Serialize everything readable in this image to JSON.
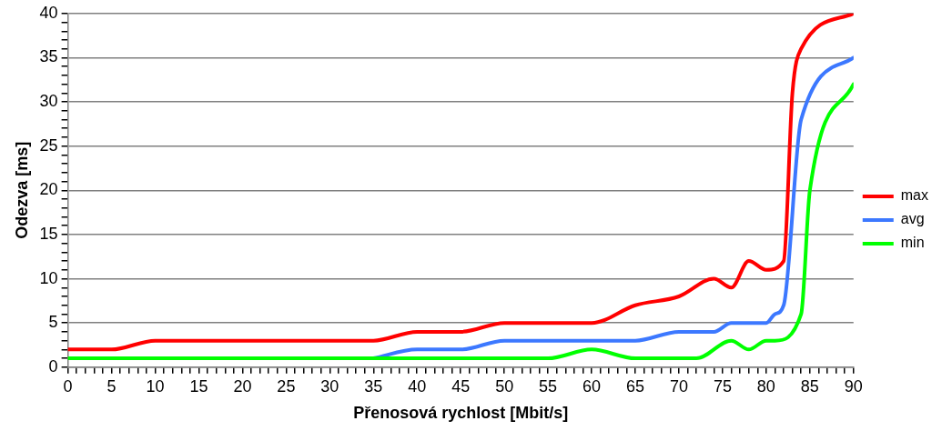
{
  "chart_data": {
    "type": "line",
    "xlabel": "Přenosová rychlost [Mbit/s]",
    "ylabel": "Odezva [ms]",
    "xlim": [
      0,
      90
    ],
    "ylim": [
      0,
      40
    ],
    "xticks": [
      0,
      {
        "value": 1,
        "label": null
      },
      {
        "value": 2,
        "label": null
      },
      {
        "value": 3,
        "label": null
      },
      {
        "value": 4,
        "label": null
      },
      5,
      {
        "value": 6,
        "label": null
      },
      {
        "value": 7,
        "label": null
      },
      {
        "value": 8,
        "label": null
      },
      {
        "value": 9,
        "label": null
      },
      10,
      {
        "value": 11,
        "label": null
      },
      {
        "value": 12,
        "label": null
      },
      {
        "value": 13,
        "label": null
      },
      {
        "value": 14,
        "label": null
      },
      15,
      {
        "value": 16,
        "label": null
      },
      {
        "value": 17,
        "label": null
      },
      {
        "value": 18,
        "label": null
      },
      {
        "value": 19,
        "label": null
      },
      20,
      {
        "value": 21,
        "label": null
      },
      {
        "value": 22,
        "label": null
      },
      {
        "value": 23,
        "label": null
      },
      {
        "value": 24,
        "label": null
      },
      25,
      {
        "value": 26,
        "label": null
      },
      {
        "value": 27,
        "label": null
      },
      {
        "value": 28,
        "label": null
      },
      {
        "value": 29,
        "label": null
      },
      30,
      {
        "value": 31,
        "label": null
      },
      {
        "value": 32,
        "label": null
      },
      {
        "value": 33,
        "label": null
      },
      {
        "value": 34,
        "label": null
      },
      35,
      {
        "value": 36,
        "label": null
      },
      {
        "value": 37,
        "label": null
      },
      {
        "value": 38,
        "label": null
      },
      {
        "value": 39,
        "label": null
      },
      40,
      {
        "value": 41,
        "label": null
      },
      {
        "value": 42,
        "label": null
      },
      {
        "value": 43,
        "label": null
      },
      {
        "value": 44,
        "label": null
      },
      45,
      {
        "value": 46,
        "label": null
      },
      {
        "value": 47,
        "label": null
      },
      {
        "value": 48,
        "label": null
      },
      {
        "value": 49,
        "label": null
      },
      50,
      {
        "value": 51,
        "label": null
      },
      {
        "value": 52,
        "label": null
      },
      {
        "value": 53,
        "label": null
      },
      {
        "value": 54,
        "label": null
      },
      55,
      {
        "value": 56,
        "label": null
      },
      {
        "value": 57,
        "label": null
      },
      {
        "value": 58,
        "label": null
      },
      {
        "value": 59,
        "label": null
      },
      60,
      {
        "value": 61,
        "label": null
      },
      {
        "value": 62,
        "label": null
      },
      {
        "value": 63,
        "label": null
      },
      {
        "value": 64,
        "label": null
      },
      65,
      {
        "value": 66,
        "label": null
      },
      {
        "value": 67,
        "label": null
      },
      {
        "value": 68,
        "label": null
      },
      {
        "value": 69,
        "label": null
      },
      70,
      {
        "value": 71,
        "label": null
      },
      {
        "value": 72,
        "label": null
      },
      {
        "value": 73,
        "label": null
      },
      {
        "value": 74,
        "label": null
      },
      75,
      {
        "value": 76,
        "label": null
      },
      {
        "value": 77,
        "label": null
      },
      {
        "value": 78,
        "label": null
      },
      {
        "value": 79,
        "label": null
      },
      80,
      {
        "value": 81,
        "label": null
      },
      {
        "value": 82,
        "label": null
      },
      {
        "value": 83,
        "label": null
      },
      {
        "value": 84,
        "label": null
      },
      85,
      {
        "value": 86,
        "label": null
      },
      {
        "value": 87,
        "label": null
      },
      {
        "value": 88,
        "label": null
      },
      {
        "value": 89,
        "label": null
      },
      90
    ],
    "yticks": [
      0,
      {
        "value": 1,
        "label": null
      },
      {
        "value": 2,
        "label": null
      },
      {
        "value": 3,
        "label": null
      },
      {
        "value": 4,
        "label": null
      },
      5,
      {
        "value": 6,
        "label": null
      },
      {
        "value": 7,
        "label": null
      },
      {
        "value": 8,
        "label": null
      },
      {
        "value": 9,
        "label": null
      },
      10,
      {
        "value": 11,
        "label": null
      },
      {
        "value": 12,
        "label": null
      },
      {
        "value": 13,
        "label": null
      },
      {
        "value": 14,
        "label": null
      },
      15,
      {
        "value": 16,
        "label": null
      },
      {
        "value": 17,
        "label": null
      },
      {
        "value": 18,
        "label": null
      },
      {
        "value": 19,
        "label": null
      },
      20,
      {
        "value": 21,
        "label": null
      },
      {
        "value": 22,
        "label": null
      },
      {
        "value": 23,
        "label": null
      },
      {
        "value": 24,
        "label": null
      },
      25,
      {
        "value": 26,
        "label": null
      },
      {
        "value": 27,
        "label": null
      },
      {
        "value": 28,
        "label": null
      },
      {
        "value": 29,
        "label": null
      },
      30,
      {
        "value": 31,
        "label": null
      },
      {
        "value": 32,
        "label": null
      },
      {
        "value": 33,
        "label": null
      },
      {
        "value": 34,
        "label": null
      },
      35,
      {
        "value": 36,
        "label": null
      },
      {
        "value": 37,
        "label": null
      },
      {
        "value": 38,
        "label": null
      },
      {
        "value": 39,
        "label": null
      },
      40
    ],
    "grid": "y",
    "legend": "right",
    "marker": "none",
    "line_style": "solid",
    "series": [
      {
        "name": "max",
        "color": "#ff0000",
        "x": [
          0,
          5,
          10,
          15,
          20,
          25,
          30,
          35,
          40,
          45,
          50,
          55,
          60,
          65,
          70,
          74,
          76,
          78,
          80,
          82,
          83,
          84,
          90
        ],
        "values": [
          2,
          2,
          3,
          3,
          3,
          3,
          3,
          3,
          4,
          4,
          5,
          5,
          5,
          7,
          8,
          10,
          9,
          12,
          11,
          12,
          31,
          36,
          40
        ]
      },
      {
        "name": "avg",
        "color": "#3c78ff",
        "x": [
          35,
          40,
          45,
          50,
          55,
          60,
          65,
          70,
          74,
          76,
          80,
          81,
          82,
          84,
          90
        ],
        "values": [
          1,
          2,
          2,
          3,
          3,
          3,
          3,
          4,
          4,
          5,
          5,
          6,
          7,
          28,
          35
        ]
      },
      {
        "name": "min",
        "color": "#00ff00",
        "x": [
          0,
          5,
          10,
          15,
          20,
          25,
          30,
          35,
          40,
          45,
          50,
          55,
          60,
          65,
          70,
          72,
          76,
          78,
          80,
          81,
          84,
          85,
          90
        ],
        "values": [
          1,
          1,
          1,
          1,
          1,
          1,
          1,
          1,
          1,
          1,
          1,
          1,
          2,
          1,
          1,
          1,
          3,
          2,
          3,
          3,
          6,
          20,
          32
        ]
      }
    ]
  }
}
